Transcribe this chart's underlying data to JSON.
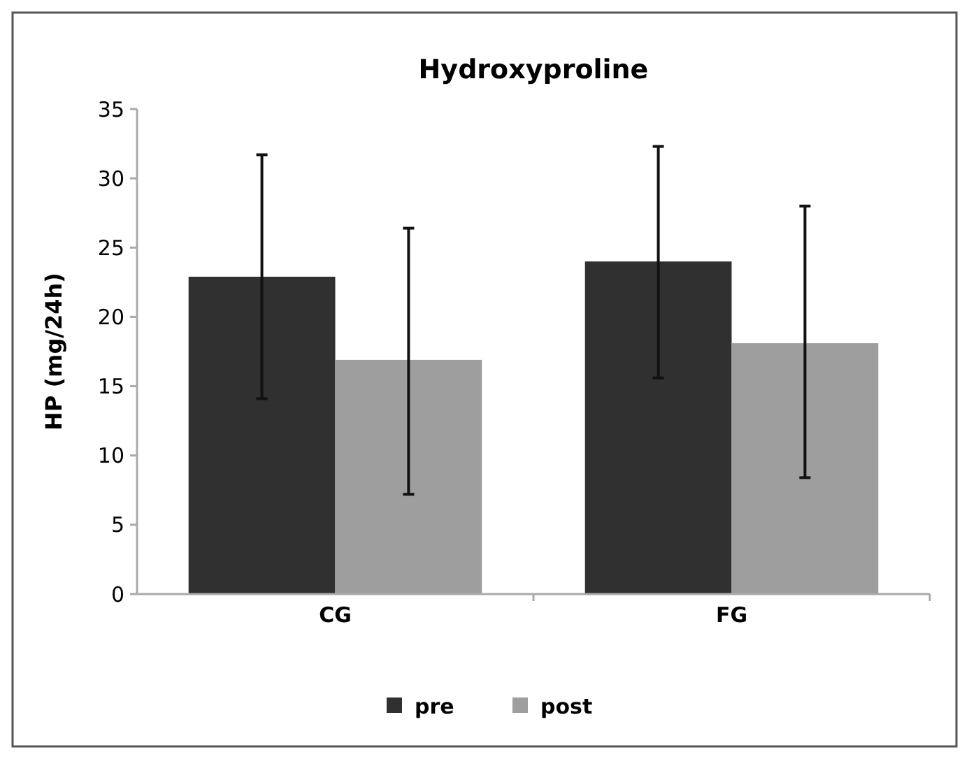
{
  "chart_data": {
    "type": "bar",
    "title": "Hydroxyproline",
    "ylabel": "HP (mg/24h)",
    "categories": [
      "CG",
      "FG"
    ],
    "series": [
      {
        "name": "pre",
        "color": "#303030",
        "values": [
          22.9,
          24.0
        ],
        "errors": [
          [
            14.1,
            31.7
          ],
          [
            15.6,
            32.3
          ]
        ]
      },
      {
        "name": "post",
        "color": "#9e9e9e",
        "values": [
          16.9,
          18.1
        ],
        "errors": [
          [
            7.2,
            26.4
          ],
          [
            8.4,
            28.0
          ]
        ]
      }
    ],
    "ylim": [
      0,
      35
    ],
    "yticks": [
      0,
      5,
      10,
      15,
      20,
      25,
      30,
      35
    ],
    "grid": false,
    "legend": "bottom"
  }
}
